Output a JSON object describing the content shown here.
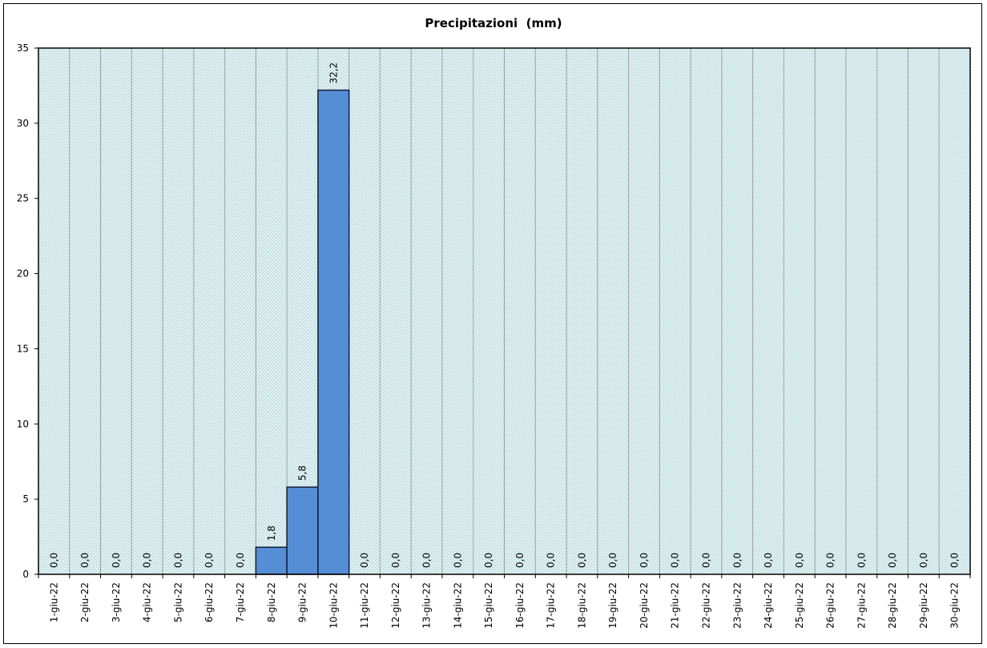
{
  "chart_data": {
    "type": "bar",
    "title": "Precipitazioni  (mm)",
    "xlabel": "",
    "ylabel": "",
    "ylim": [
      0,
      35
    ],
    "yticks": [
      0,
      5,
      10,
      15,
      20,
      25,
      30,
      35
    ],
    "grid": "vertical category separators",
    "legend": "none",
    "categories": [
      "1-giu-22",
      "2-giu-22",
      "3-giu-22",
      "4-giu-22",
      "5-giu-22",
      "6-giu-22",
      "7-giu-22",
      "8-giu-22",
      "9-giu-22",
      "10-giu-22",
      "11-giu-22",
      "12-giu-22",
      "13-giu-22",
      "14-giu-22",
      "15-giu-22",
      "16-giu-22",
      "17-giu-22",
      "18-giu-22",
      "19-giu-22",
      "20-giu-22",
      "21-giu-22",
      "22-giu-22",
      "23-giu-22",
      "24-giu-22",
      "25-giu-22",
      "26-giu-22",
      "27-giu-22",
      "28-giu-22",
      "29-giu-22",
      "30-giu-22"
    ],
    "values": [
      0,
      0,
      0,
      0,
      0,
      0,
      0,
      1.8,
      5.8,
      32.2,
      0,
      0,
      0,
      0,
      0,
      0,
      0,
      0,
      0,
      0,
      0,
      0,
      0,
      0,
      0,
      0,
      0,
      0,
      0,
      0
    ],
    "data_labels": [
      "0,0",
      "0,0",
      "0,0",
      "0,0",
      "0,0",
      "0,0",
      "0,0",
      "1,8",
      "5,8",
      "32,2",
      "0,0",
      "0,0",
      "0,0",
      "0,0",
      "0,0",
      "0,0",
      "0,0",
      "0,0",
      "0,0",
      "0,0",
      "0,0",
      "0,0",
      "0,0",
      "0,0",
      "0,0",
      "0,0",
      "0,0",
      "0,0",
      "0,0",
      "0,0"
    ],
    "colors": {
      "bar_fill": "#558ED5",
      "bar_stroke": "#0F1F3D",
      "plot_background": "#DDEEF0",
      "plot_dots": "#9CC8CC",
      "grid_line": "#A0A0A0"
    }
  }
}
